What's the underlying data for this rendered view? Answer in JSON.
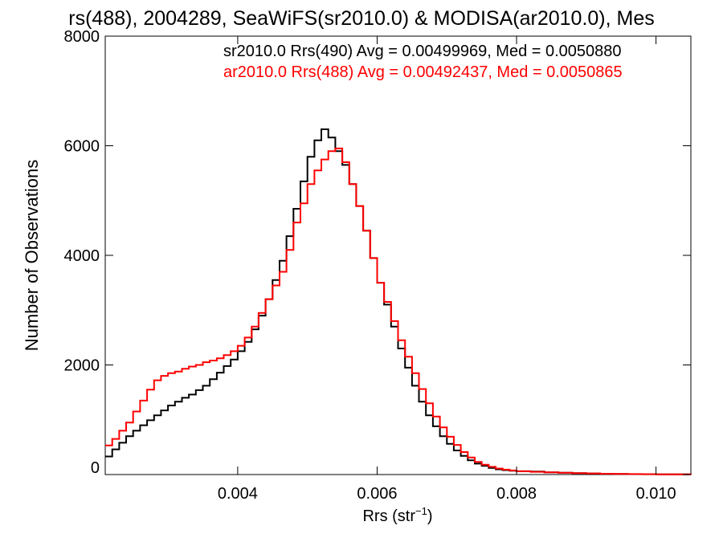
{
  "chart_data": {
    "type": "line",
    "title": "rs(488), 2004289, SeaWiFS(sr2010.0) & MODISA(ar2010.0), Mes",
    "xlabel": "Rrs (str",
    "xlabel_sup": "−1",
    "xlabel_close": ")",
    "ylabel": "Number of Observations",
    "xlim": [
      0.0021,
      0.0105
    ],
    "ylim": [
      0,
      8000
    ],
    "xticks": [
      {
        "value": 0.004,
        "label": "0.004"
      },
      {
        "value": 0.006,
        "label": "0.006"
      },
      {
        "value": 0.008,
        "label": "0.008"
      },
      {
        "value": 0.01,
        "label": "0.010"
      }
    ],
    "yticks": [
      {
        "value": 0,
        "label": "0"
      },
      {
        "value": 2000,
        "label": "2000"
      },
      {
        "value": 4000,
        "label": "4000"
      },
      {
        "value": 6000,
        "label": "6000"
      },
      {
        "value": 8000,
        "label": "8000"
      }
    ],
    "legend_position": "top-right",
    "series": [
      {
        "name": "sr2010.0 Rrs(490) Avg = 0.00499969, Med = 0.0050880",
        "color": "#000000",
        "x": [
          0.0021,
          0.0022,
          0.0023,
          0.0024,
          0.0025,
          0.0026,
          0.0027,
          0.0028,
          0.0029,
          0.003,
          0.0031,
          0.0032,
          0.0033,
          0.0034,
          0.0035,
          0.0036,
          0.0037,
          0.0038,
          0.0039,
          0.004,
          0.0041,
          0.0042,
          0.0043,
          0.0044,
          0.0045,
          0.0046,
          0.0047,
          0.0048,
          0.0049,
          0.005,
          0.0051,
          0.0052,
          0.0053,
          0.0054,
          0.0055,
          0.0056,
          0.0057,
          0.0058,
          0.0059,
          0.006,
          0.0061,
          0.0062,
          0.0063,
          0.0064,
          0.0065,
          0.0066,
          0.0067,
          0.0068,
          0.0069,
          0.007,
          0.0071,
          0.0072,
          0.0073,
          0.0074,
          0.0075,
          0.0076,
          0.0077,
          0.0078,
          0.0079,
          0.008,
          0.0082,
          0.0084,
          0.0086,
          0.0088,
          0.009,
          0.0092,
          0.0094,
          0.0096,
          0.0098,
          0.01,
          0.0102,
          0.0105
        ],
        "y": [
          330,
          460,
          580,
          700,
          800,
          900,
          990,
          1080,
          1170,
          1260,
          1330,
          1400,
          1460,
          1540,
          1620,
          1740,
          1860,
          1980,
          2100,
          2250,
          2420,
          2650,
          2900,
          3200,
          3550,
          3900,
          4350,
          4850,
          5350,
          5800,
          6100,
          6300,
          6150,
          5900,
          5650,
          5300,
          4900,
          4450,
          3950,
          3500,
          3100,
          2700,
          2300,
          1950,
          1620,
          1330,
          1080,
          880,
          700,
          560,
          440,
          340,
          260,
          200,
          160,
          120,
          95,
          80,
          70,
          60,
          55,
          40,
          32,
          25,
          20,
          15,
          10,
          8,
          6,
          4,
          3,
          2
        ]
      },
      {
        "name": "ar2010.0 Rrs(488) Avg = 0.00492437, Med = 0.0050865",
        "color": "#ff0000",
        "x": [
          0.0021,
          0.0022,
          0.0023,
          0.0024,
          0.0025,
          0.0026,
          0.0027,
          0.0028,
          0.0029,
          0.003,
          0.0031,
          0.0032,
          0.0033,
          0.0034,
          0.0035,
          0.0036,
          0.0037,
          0.0038,
          0.0039,
          0.004,
          0.0041,
          0.0042,
          0.0043,
          0.0044,
          0.0045,
          0.0046,
          0.0047,
          0.0048,
          0.0049,
          0.005,
          0.0051,
          0.0052,
          0.0053,
          0.0054,
          0.0055,
          0.0056,
          0.0057,
          0.0058,
          0.0059,
          0.006,
          0.0061,
          0.0062,
          0.0063,
          0.0064,
          0.0065,
          0.0066,
          0.0067,
          0.0068,
          0.0069,
          0.007,
          0.0071,
          0.0072,
          0.0073,
          0.0074,
          0.0075,
          0.0076,
          0.0077,
          0.0078,
          0.0079,
          0.008,
          0.0082,
          0.0084,
          0.0086,
          0.0088,
          0.009,
          0.0092,
          0.0094,
          0.0096,
          0.0098,
          0.01,
          0.0102,
          0.0105
        ],
        "y": [
          530,
          650,
          800,
          950,
          1150,
          1350,
          1550,
          1720,
          1800,
          1850,
          1880,
          1930,
          1970,
          2000,
          2050,
          2080,
          2120,
          2180,
          2250,
          2350,
          2500,
          2700,
          2950,
          3200,
          3450,
          3700,
          4100,
          4600,
          4950,
          5300,
          5550,
          5750,
          5900,
          5950,
          5700,
          5300,
          4900,
          4450,
          3950,
          3500,
          3150,
          2800,
          2450,
          2150,
          1850,
          1560,
          1300,
          1060,
          860,
          690,
          540,
          410,
          310,
          230,
          180,
          140,
          110,
          90,
          75,
          60,
          50,
          40,
          32,
          25,
          20,
          15,
          12,
          9,
          7,
          5,
          3,
          2
        ]
      }
    ]
  }
}
